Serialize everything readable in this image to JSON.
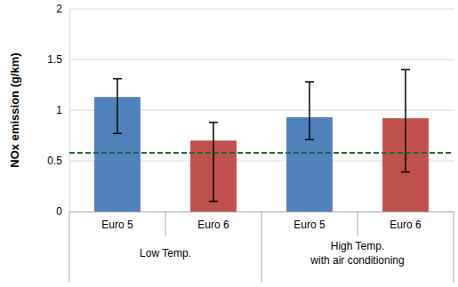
{
  "chart_data": {
    "type": "bar",
    "y_label": "NOx emission (g/km)",
    "categories": [
      "Euro 5",
      "Euro 6",
      "Euro 5",
      "Euro 6"
    ],
    "groups": [
      {
        "label": [
          "Low Temp."
        ],
        "count": 2
      },
      {
        "label": [
          "High Temp.",
          "with air conditioning"
        ],
        "count": 2
      }
    ],
    "values": [
      1.13,
      0.7,
      0.93,
      0.92
    ],
    "error_low": [
      0.77,
      0.1,
      0.71,
      0.39
    ],
    "error_high": [
      1.31,
      0.88,
      1.28,
      1.4
    ],
    "colors": [
      "#4f81bd",
      "#c0504d",
      "#4f81bd",
      "#c0504d"
    ],
    "threshold": 0.58,
    "ylim": [
      0,
      2
    ],
    "yticks": [
      0,
      0.5,
      1,
      1.5,
      2
    ],
    "grid": true
  }
}
